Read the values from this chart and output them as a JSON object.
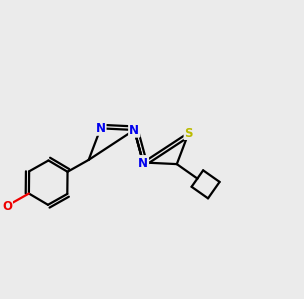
{
  "bg_color": "#ebebeb",
  "bond_color": "#000000",
  "N_color": "#0000ee",
  "S_color": "#bbbb00",
  "O_color": "#ee0000",
  "C_color": "#000000",
  "line_width": 1.6,
  "font_size": 8.5,
  "dbo": 0.012
}
